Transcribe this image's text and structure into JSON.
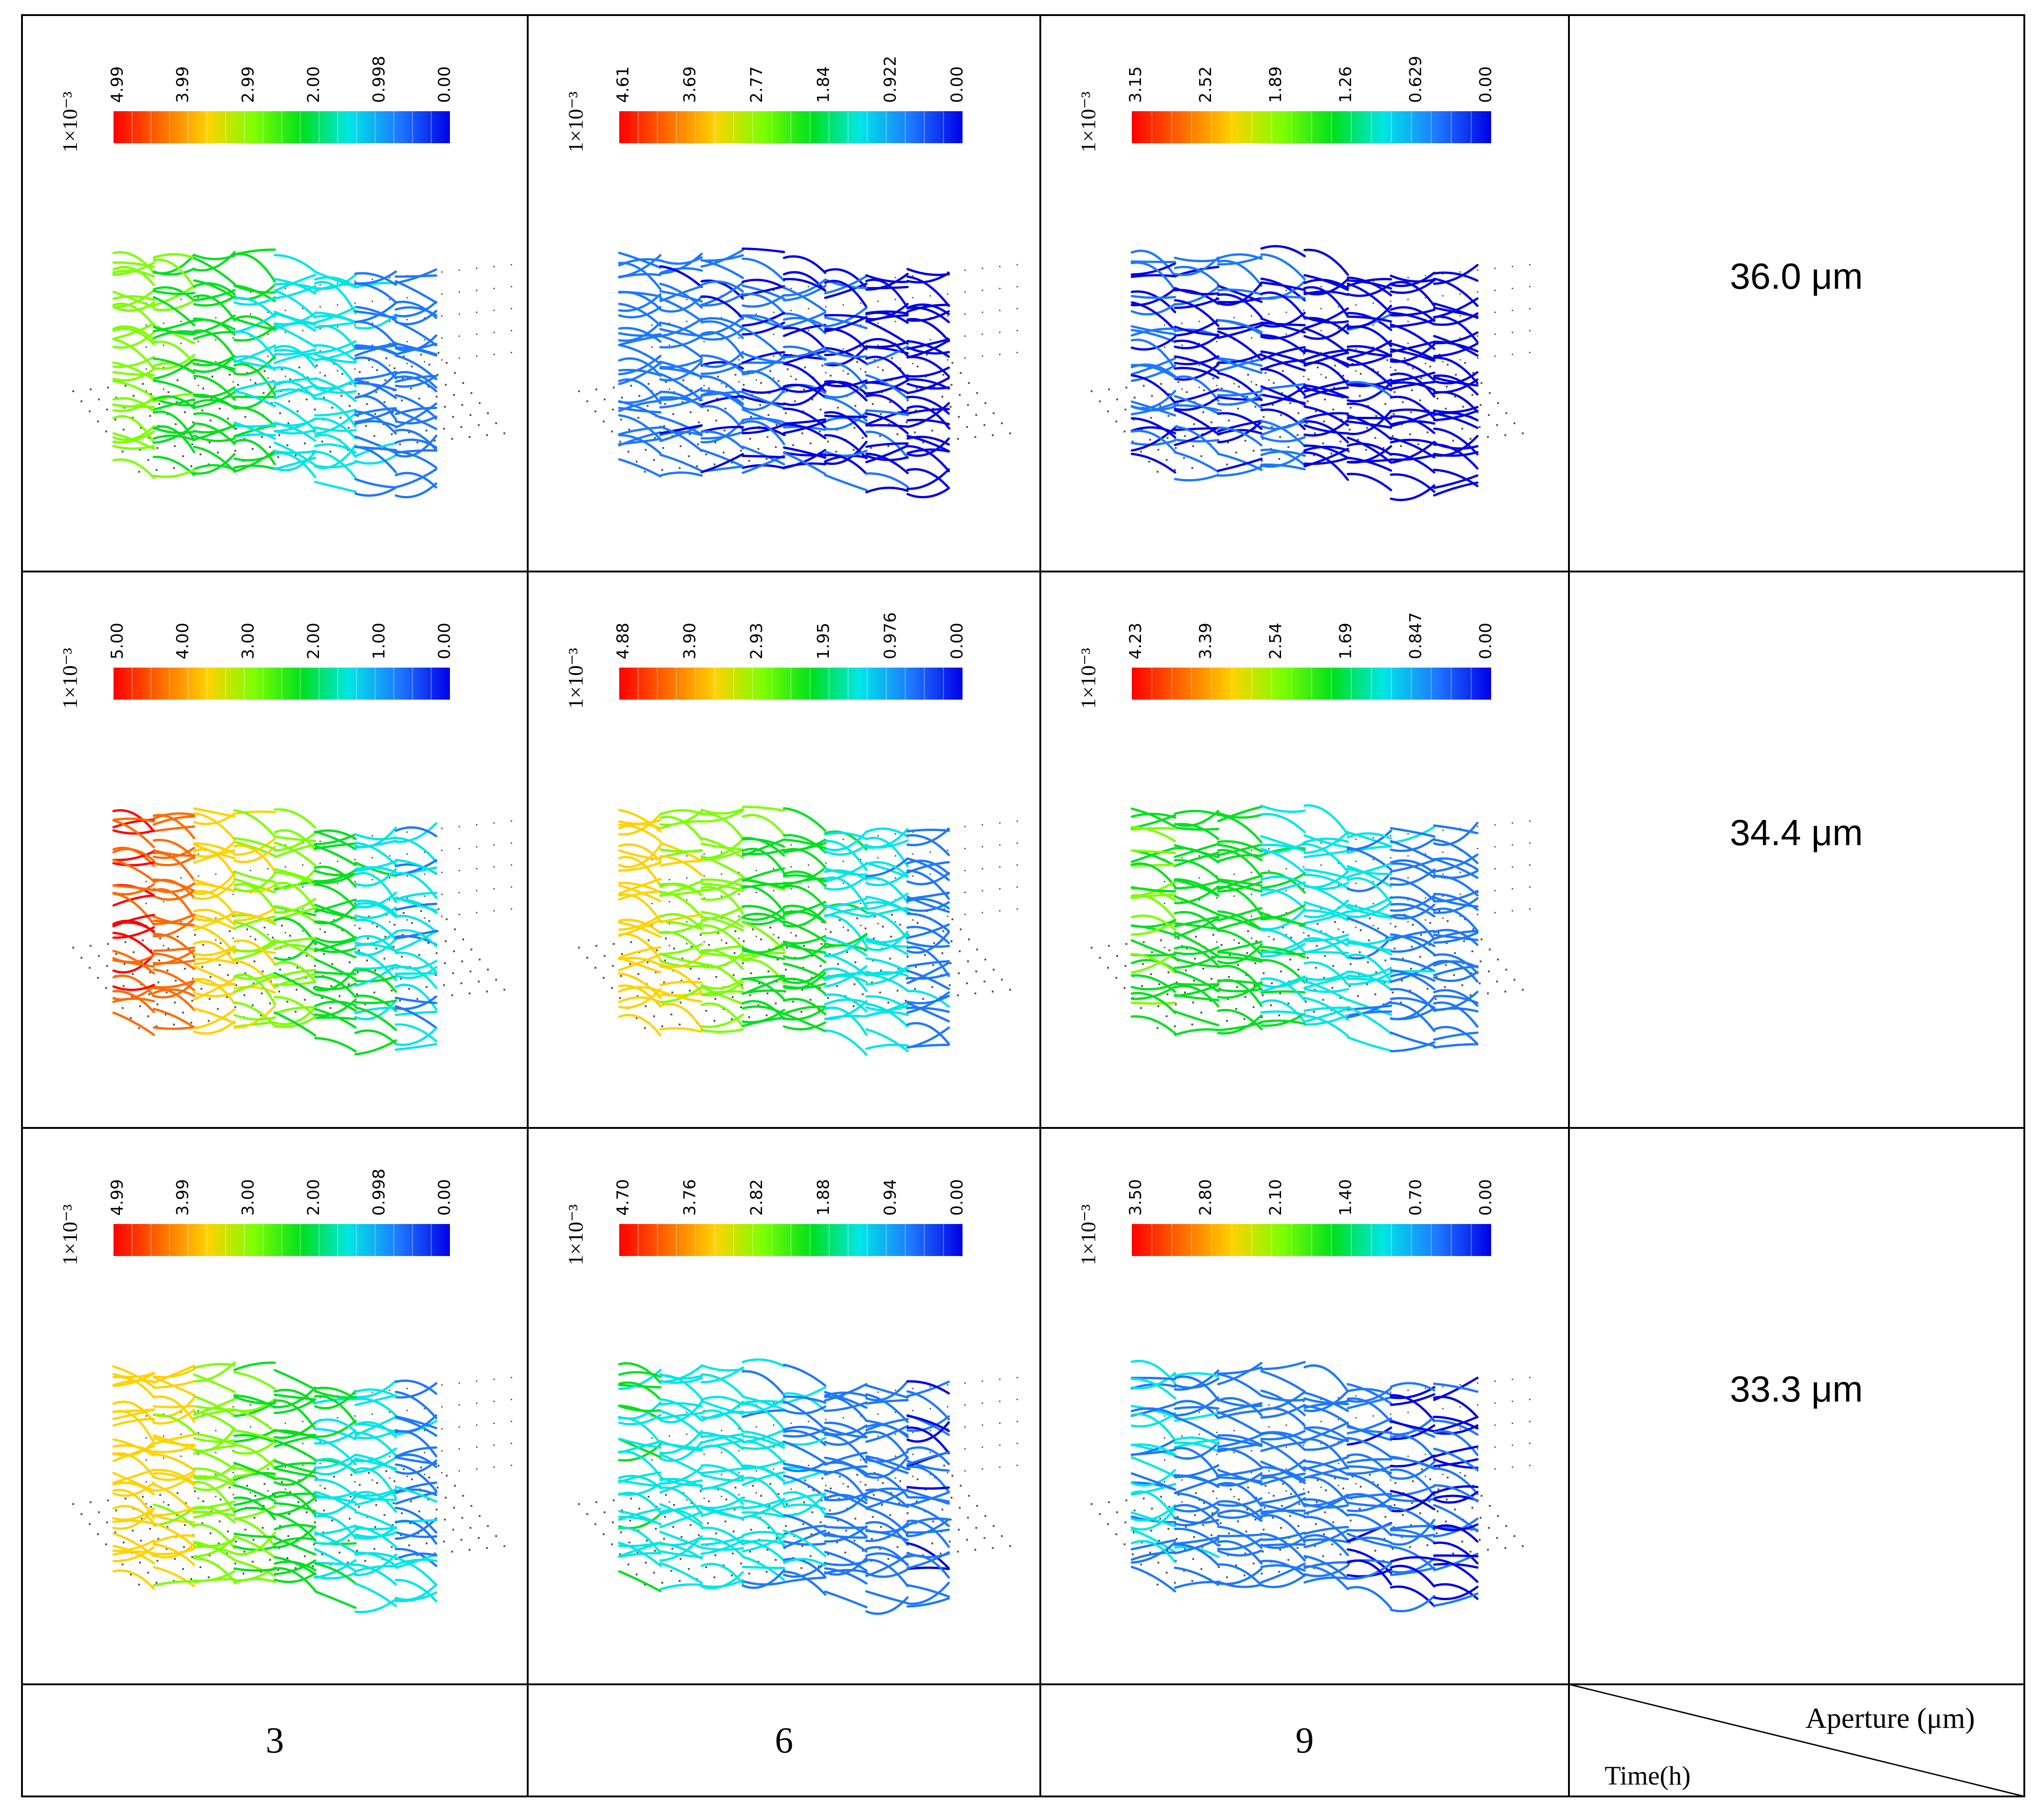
{
  "rows": [
    {
      "aperture": "36.0 μm",
      "panels": [
        {
          "scale_factor": "1×10⁻³",
          "ticks": [
            "4.99",
            "3.99",
            "2.99",
            "2.00",
            "0.998",
            "0.00"
          ],
          "level": 0.55
        },
        {
          "scale_factor": "1×10⁻³",
          "ticks": [
            "4.61",
            "3.69",
            "2.77",
            "1.84",
            "0.922",
            "0.00"
          ],
          "level": 0.12
        },
        {
          "scale_factor": "1×10⁻³",
          "ticks": [
            "3.15",
            "2.52",
            "1.89",
            "1.26",
            "0.629",
            "0.00"
          ],
          "level": 0.08
        }
      ]
    },
    {
      "aperture": "34.4 μm",
      "panels": [
        {
          "scale_factor": "1×10⁻³",
          "ticks": [
            "5.00",
            "4.00",
            "3.00",
            "2.00",
            "1.00",
            "0.00"
          ],
          "level": 0.92
        },
        {
          "scale_factor": "1×10⁻³",
          "ticks": [
            "4.88",
            "3.90",
            "2.93",
            "1.95",
            "0.976",
            "0.00"
          ],
          "level": 0.7
        },
        {
          "scale_factor": "1×10⁻³",
          "ticks": [
            "4.23",
            "3.39",
            "2.54",
            "1.69",
            "0.847",
            "0.00"
          ],
          "level": 0.5
        }
      ]
    },
    {
      "aperture": "33.3 μm",
      "panels": [
        {
          "scale_factor": "1×10⁻³",
          "ticks": [
            "4.99",
            "3.99",
            "3.00",
            "2.00",
            "0.998",
            "0.00"
          ],
          "level": 0.75
        },
        {
          "scale_factor": "1×10⁻³",
          "ticks": [
            "4.70",
            "3.76",
            "2.82",
            "1.88",
            "0.94",
            "0.00"
          ],
          "level": 0.35
        },
        {
          "scale_factor": "1×10⁻³",
          "ticks": [
            "3.50",
            "2.80",
            "2.10",
            "1.40",
            "0.70",
            "0.00"
          ],
          "level": 0.22
        }
      ]
    }
  ],
  "times": [
    "3",
    "6",
    "9"
  ],
  "corner": {
    "top_label": "Aperture (μm)",
    "bottom_label": "Time(h)"
  },
  "colors": {
    "border": "#000000",
    "grid_dot": "#555555",
    "colormap": [
      "#ff0000",
      "#ff6a00",
      "#ffd200",
      "#7cff00",
      "#00e01e",
      "#00e6e6",
      "#1e78ff",
      "#0000e6"
    ]
  }
}
